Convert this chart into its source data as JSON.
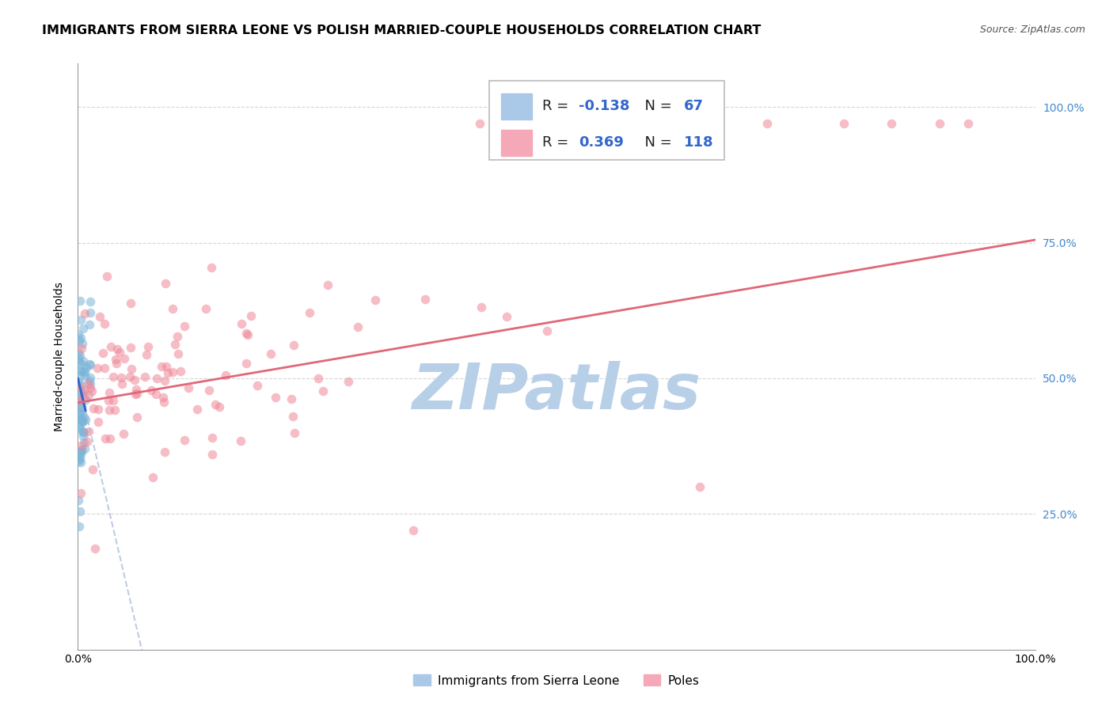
{
  "title": "IMMIGRANTS FROM SIERRA LEONE VS POLISH MARRIED-COUPLE HOUSEHOLDS CORRELATION CHART",
  "source": "Source: ZipAtlas.com",
  "ylabel": "Married-couple Households",
  "y_ticks_right": [
    0.25,
    0.5,
    0.75,
    1.0
  ],
  "y_tick_labels_right": [
    "25.0%",
    "50.0%",
    "75.0%",
    "100.0%"
  ],
  "legend_blue_R": "-0.138",
  "legend_blue_N": "67",
  "legend_pink_R": "0.369",
  "legend_pink_N": "118",
  "blue_color": "#7ab4d8",
  "blue_line_color": "#3366cc",
  "blue_dash_color": "#aabbd8",
  "pink_color": "#f08898",
  "pink_line_color": "#e06878",
  "legend_blue_fill": "#aac8e8",
  "legend_pink_fill": "#f4a8b8",
  "grid_color": "#cccccc",
  "background_color": "#ffffff",
  "scatter_alpha": 0.55,
  "scatter_size": 70,
  "title_fontsize": 11.5,
  "axis_label_fontsize": 10,
  "tick_fontsize": 10,
  "legend_fontsize": 13,
  "source_fontsize": 9,
  "watermark_text": "ZIPatlas",
  "watermark_color": "#b8cfe8",
  "watermark_fontsize": 58,
  "right_tick_color": "#4488cc"
}
